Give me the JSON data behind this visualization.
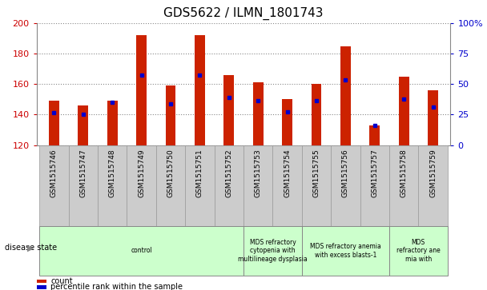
{
  "title": "GDS5622 / ILMN_1801743",
  "samples": [
    "GSM1515746",
    "GSM1515747",
    "GSM1515748",
    "GSM1515749",
    "GSM1515750",
    "GSM1515751",
    "GSM1515752",
    "GSM1515753",
    "GSM1515754",
    "GSM1515755",
    "GSM1515756",
    "GSM1515757",
    "GSM1515758",
    "GSM1515759"
  ],
  "counts": [
    149,
    146,
    149,
    192,
    159,
    192,
    166,
    161,
    150,
    160,
    185,
    133,
    165,
    156
  ],
  "percentile_values": [
    141,
    140,
    148,
    166,
    147,
    166,
    151,
    149,
    142,
    149,
    163,
    133,
    150,
    145
  ],
  "y_min": 120,
  "y_max": 200,
  "y_ticks": [
    120,
    140,
    160,
    180,
    200
  ],
  "right_y_ticks": [
    0,
    25,
    50,
    75,
    100
  ],
  "right_y_tick_labels": [
    "0",
    "25",
    "50",
    "75",
    "100%"
  ],
  "bar_color": "#cc2200",
  "dot_color": "#0000cc",
  "grid_color": "#888888",
  "bg_color": "#ffffff",
  "tick_label_color_left": "#cc0000",
  "tick_label_color_right": "#0000cc",
  "group_defs": [
    {
      "start": 0,
      "end": 7,
      "label": "control"
    },
    {
      "start": 7,
      "end": 9,
      "label": "MDS refractory\ncytopenia with\nmultilineage dysplasia"
    },
    {
      "start": 9,
      "end": 12,
      "label": "MDS refractory anemia\nwith excess blasts-1"
    },
    {
      "start": 12,
      "end": 14,
      "label": "MDS\nrefractory ane\nmia with"
    }
  ],
  "group_color": "#ccffcc",
  "sample_box_color": "#cccccc",
  "disease_label": "disease state",
  "legend_count": "count",
  "legend_percentile": "percentile rank within the sample",
  "bar_width": 0.35
}
